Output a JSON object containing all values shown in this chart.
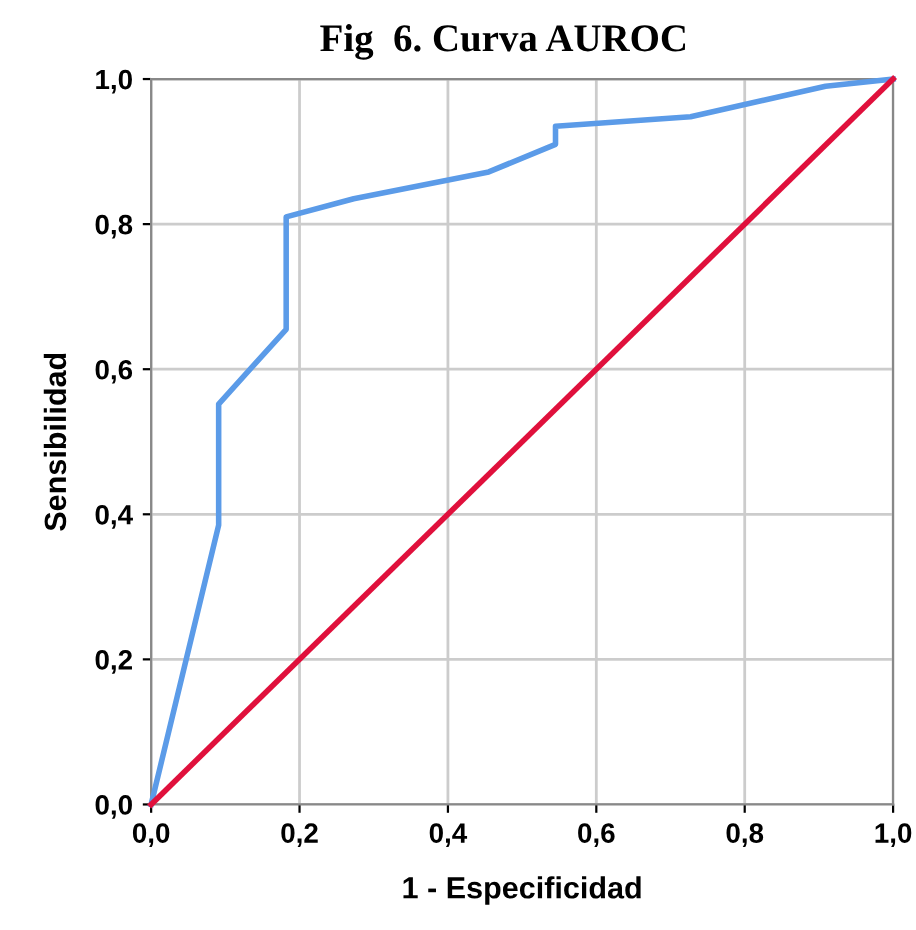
{
  "chart_data": {
    "type": "line",
    "title": "Fig  6. Curva AUROC",
    "xlabel": "1 - Especificidad",
    "ylabel": "Sensibilidad",
    "xlim": [
      0,
      1
    ],
    "ylim": [
      0,
      1
    ],
    "xticks": [
      {
        "value": 0,
        "label": "0,0"
      },
      {
        "value": 0.2,
        "label": "0,2"
      },
      {
        "value": 0.4,
        "label": "0,4"
      },
      {
        "value": 0.6,
        "label": "0,6"
      },
      {
        "value": 0.8,
        "label": "0,8"
      },
      {
        "value": 1,
        "label": "1,0"
      }
    ],
    "yticks": [
      {
        "value": 0,
        "label": "0,0"
      },
      {
        "value": 0.2,
        "label": "0,2"
      },
      {
        "value": 0.4,
        "label": "0,4"
      },
      {
        "value": 0.6,
        "label": "0,6"
      },
      {
        "value": 0.8,
        "label": "0,8"
      },
      {
        "value": 1,
        "label": "1,0"
      }
    ],
    "grid": true,
    "marker": "none",
    "line_style": "solid",
    "series": [
      {
        "color": "#5b9be8",
        "x": [
          0,
          0.091,
          0.091,
          0.182,
          0.182,
          0.273,
          0.455,
          0.545,
          0.545,
          0.727,
          0.909,
          1
        ],
        "values": [
          0,
          0.385,
          0.552,
          0.655,
          0.81,
          0.835,
          0.872,
          0.91,
          0.935,
          0.948,
          0.99,
          1
        ]
      },
      {
        "color": "#e0103c",
        "x": [
          0,
          1
        ],
        "values": [
          0,
          1
        ]
      }
    ]
  }
}
